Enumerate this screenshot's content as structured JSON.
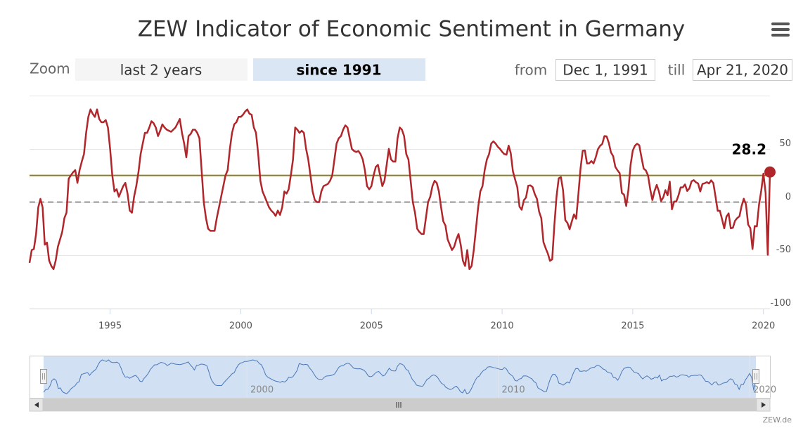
{
  "title": "ZEW Indicator of Economic Sentiment in Germany",
  "zoom": {
    "label": "Zoom",
    "buttons": [
      "last 2 years",
      "since 1991"
    ],
    "selected": 1
  },
  "range": {
    "from_label": "from",
    "from": "Dec 1, 1991",
    "till_label": "till",
    "till": "Apr 21, 2020"
  },
  "credits": "ZEW.de",
  "chart_data": {
    "type": "line",
    "x": [
      "1991-12",
      "1992-01",
      "1992-02",
      "1992-03",
      "1992-04",
      "1992-05",
      "1992-06",
      "1992-07",
      "1992-08",
      "1992-09",
      "1992-10",
      "1992-11",
      "1992-12",
      "1993-01",
      "1993-02",
      "1993-03",
      "1993-04",
      "1993-05",
      "1993-06",
      "1993-07",
      "1993-08",
      "1993-09",
      "1993-10",
      "1993-11",
      "1993-12",
      "1994-01",
      "1994-02",
      "1994-03",
      "1994-04",
      "1994-05",
      "1994-06",
      "1994-07",
      "1994-08",
      "1994-09",
      "1994-10",
      "1994-11",
      "1994-12",
      "1995-01",
      "1995-02",
      "1995-03",
      "1995-04",
      "1995-05",
      "1995-06",
      "1995-07",
      "1995-08",
      "1995-09",
      "1995-10",
      "1995-11",
      "1995-12",
      "1996-01",
      "1996-02",
      "1996-03",
      "1996-04",
      "1996-05",
      "1996-06",
      "1996-07",
      "1996-08",
      "1996-09",
      "1996-10",
      "1996-11",
      "1996-12",
      "1997-01",
      "1997-02",
      "1997-03",
      "1997-04",
      "1997-05",
      "1997-06",
      "1997-07",
      "1997-08",
      "1997-09",
      "1997-10",
      "1997-11",
      "1997-12",
      "1998-01",
      "1998-02",
      "1998-03",
      "1998-04",
      "1998-05",
      "1998-06",
      "1998-07",
      "1998-08",
      "1998-09",
      "1998-10",
      "1998-11",
      "1998-12",
      "1999-01",
      "1999-02",
      "1999-03",
      "1999-04",
      "1999-05",
      "1999-06",
      "1999-07",
      "1999-08",
      "1999-09",
      "1999-10",
      "1999-11",
      "1999-12",
      "2000-01",
      "2000-02",
      "2000-03",
      "2000-04",
      "2000-05",
      "2000-06",
      "2000-07",
      "2000-08",
      "2000-09",
      "2000-10",
      "2000-11",
      "2000-12",
      "2001-01",
      "2001-02",
      "2001-03",
      "2001-04",
      "2001-05",
      "2001-06",
      "2001-07",
      "2001-08",
      "2001-09",
      "2001-10",
      "2001-11",
      "2001-12",
      "2002-01",
      "2002-02",
      "2002-03",
      "2002-04",
      "2002-05",
      "2002-06",
      "2002-07",
      "2002-08",
      "2002-09",
      "2002-10",
      "2002-11",
      "2002-12",
      "2003-01",
      "2003-02",
      "2003-03",
      "2003-04",
      "2003-05",
      "2003-06",
      "2003-07",
      "2003-08",
      "2003-09",
      "2003-10",
      "2003-11",
      "2003-12",
      "2004-01",
      "2004-02",
      "2004-03",
      "2004-04",
      "2004-05",
      "2004-06",
      "2004-07",
      "2004-08",
      "2004-09",
      "2004-10",
      "2004-11",
      "2004-12",
      "2005-01",
      "2005-02",
      "2005-03",
      "2005-04",
      "2005-05",
      "2005-06",
      "2005-07",
      "2005-08",
      "2005-09",
      "2005-10",
      "2005-11",
      "2005-12",
      "2006-01",
      "2006-02",
      "2006-03",
      "2006-04",
      "2006-05",
      "2006-06",
      "2006-07",
      "2006-08",
      "2006-09",
      "2006-10",
      "2006-11",
      "2006-12",
      "2007-01",
      "2007-02",
      "2007-03",
      "2007-04",
      "2007-05",
      "2007-06",
      "2007-07",
      "2007-08",
      "2007-09",
      "2007-10",
      "2007-11",
      "2007-12",
      "2008-01",
      "2008-02",
      "2008-03",
      "2008-04",
      "2008-05",
      "2008-06",
      "2008-07",
      "2008-08",
      "2008-09",
      "2008-10",
      "2008-11",
      "2008-12",
      "2009-01",
      "2009-02",
      "2009-03",
      "2009-04",
      "2009-05",
      "2009-06",
      "2009-07",
      "2009-08",
      "2009-09",
      "2009-10",
      "2009-11",
      "2009-12",
      "2010-01",
      "2010-02",
      "2010-03",
      "2010-04",
      "2010-05",
      "2010-06",
      "2010-07",
      "2010-08",
      "2010-09",
      "2010-10",
      "2010-11",
      "2010-12",
      "2011-01",
      "2011-02",
      "2011-03",
      "2011-04",
      "2011-05",
      "2011-06",
      "2011-07",
      "2011-08",
      "2011-09",
      "2011-10",
      "2011-11",
      "2011-12",
      "2012-01",
      "2012-02",
      "2012-03",
      "2012-04",
      "2012-05",
      "2012-06",
      "2012-07",
      "2012-08",
      "2012-09",
      "2012-10",
      "2012-11",
      "2012-12",
      "2013-01",
      "2013-02",
      "2013-03",
      "2013-04",
      "2013-05",
      "2013-06",
      "2013-07",
      "2013-08",
      "2013-09",
      "2013-10",
      "2013-11",
      "2013-12",
      "2014-01",
      "2014-02",
      "2014-03",
      "2014-04",
      "2014-05",
      "2014-06",
      "2014-07",
      "2014-08",
      "2014-09",
      "2014-10",
      "2014-11",
      "2014-12",
      "2015-01",
      "2015-02",
      "2015-03",
      "2015-04",
      "2015-05",
      "2015-06",
      "2015-07",
      "2015-08",
      "2015-09",
      "2015-10",
      "2015-11",
      "2015-12",
      "2016-01",
      "2016-02",
      "2016-03",
      "2016-04",
      "2016-05",
      "2016-06",
      "2016-07",
      "2016-08",
      "2016-09",
      "2016-10",
      "2016-11",
      "2016-12",
      "2017-01",
      "2017-02",
      "2017-03",
      "2017-04",
      "2017-05",
      "2017-06",
      "2017-07",
      "2017-08",
      "2017-09",
      "2017-10",
      "2017-11",
      "2017-12",
      "2018-01",
      "2018-02",
      "2018-03",
      "2018-04",
      "2018-05",
      "2018-06",
      "2018-07",
      "2018-08",
      "2018-09",
      "2018-10",
      "2018-11",
      "2018-12",
      "2019-01",
      "2019-02",
      "2019-03",
      "2019-04",
      "2019-05",
      "2019-06",
      "2019-07",
      "2019-08",
      "2019-09",
      "2019-10",
      "2019-11",
      "2019-12",
      "2020-01",
      "2020-02",
      "2020-03",
      "2020-04"
    ],
    "series": [
      {
        "color": "#b0262a",
        "values": [
          -57,
          -45,
          -44,
          -30,
          -5,
          3,
          -5,
          -40,
          -38,
          -55,
          -60,
          -63,
          -55,
          -42,
          -35,
          -28,
          -15,
          -10,
          22,
          25,
          28,
          30,
          18,
          30,
          38,
          45,
          65,
          80,
          87,
          83,
          80,
          87,
          78,
          75,
          75,
          77,
          70,
          50,
          25,
          10,
          12,
          5,
          10,
          15,
          18,
          8,
          -8,
          -10,
          5,
          15,
          28,
          45,
          55,
          65,
          65,
          70,
          76,
          74,
          70,
          62,
          67,
          73,
          70,
          68,
          67,
          66,
          68,
          70,
          74,
          78,
          65,
          55,
          42,
          62,
          64,
          68,
          68,
          65,
          60,
          30,
          0,
          -15,
          -25,
          -27,
          -27,
          -27,
          -15,
          -5,
          5,
          15,
          25,
          30,
          50,
          65,
          73,
          75,
          80,
          80,
          82,
          85,
          87,
          83,
          82,
          70,
          65,
          45,
          20,
          10,
          5,
          0,
          -5,
          -8,
          -10,
          -13,
          -8,
          -12,
          -5,
          10,
          8,
          12,
          25,
          40,
          70,
          68,
          65,
          67,
          65,
          50,
          40,
          25,
          10,
          2,
          0,
          0,
          10,
          15,
          16,
          17,
          20,
          25,
          40,
          55,
          60,
          62,
          68,
          72,
          70,
          60,
          50,
          48,
          47,
          48,
          45,
          40,
          30,
          15,
          12,
          15,
          25,
          33,
          35,
          25,
          15,
          20,
          35,
          50,
          40,
          38,
          38,
          60,
          70,
          68,
          62,
          45,
          40,
          20,
          0,
          -10,
          -25,
          -28,
          -30,
          -30,
          -15,
          0,
          5,
          15,
          20,
          18,
          10,
          -5,
          -18,
          -22,
          -35,
          -40,
          -45,
          -42,
          -35,
          -30,
          -40,
          -55,
          -60,
          -45,
          -63,
          -60,
          -45,
          -25,
          -5,
          10,
          15,
          30,
          40,
          45,
          55,
          57,
          55,
          52,
          50,
          47.2,
          45.1,
          44.5,
          53,
          45.8,
          28.7,
          21.2,
          14,
          -4.3,
          -7.2,
          1.8,
          4.3,
          15.4,
          15.7,
          14.1,
          7.6,
          3.1,
          -9,
          -15.1,
          -37.6,
          -43.3,
          -48.3,
          -55.2,
          -53.8,
          -21.6,
          5.4,
          22.3,
          23.4,
          10.8,
          -16.9,
          -19.6,
          -25.5,
          -18.2,
          -11.5,
          -15.7,
          6.9,
          31.5,
          48.2,
          48.5,
          36.3,
          36.4,
          38.5,
          36.3,
          42,
          49.6,
          52.8,
          54.6,
          62,
          61.7,
          55.7,
          46.6,
          43.2,
          33.1,
          29.8,
          27.1,
          8.6,
          6.9,
          -3.6,
          11.5,
          34.9,
          48.4,
          53,
          54.8,
          53.3,
          41.9,
          31.5,
          29.7,
          25,
          12.1,
          1.9,
          10.4,
          16.1,
          10.2,
          1,
          4.3,
          11.2,
          6.4,
          19.2,
          -6.8,
          0.5,
          0.5,
          6.2,
          13.8,
          13.8,
          16.6,
          10.4,
          12.8,
          19.5,
          20.6,
          18.6,
          17.5,
          10,
          17,
          17.6,
          18.7,
          17.4,
          20.4,
          17.8,
          5.1,
          -8.2,
          -8.2,
          -16.1,
          -24.7,
          -13.7,
          -10.6,
          -24.7,
          -24.1,
          -17.5,
          -15,
          -13.4,
          -3.6,
          3.1,
          -2.1,
          -21.1,
          -24.5,
          -44.1,
          -22.5,
          -22.8,
          -2.1,
          10.7,
          26.7,
          8.7,
          -49.5,
          28.2
        ]
      }
    ],
    "xlim": [
      "1991-12",
      "2020-04"
    ],
    "xticks": [
      1995,
      2000,
      2005,
      2010,
      2015,
      2020
    ],
    "ylim": [
      -100,
      100
    ],
    "yticks": [
      -100,
      -50,
      0,
      50
    ],
    "grid": true,
    "plot_lines": [
      {
        "value": 25,
        "color": "#8a7d2e"
      },
      {
        "value": 0,
        "color": "#9a9a9a",
        "dash": true
      }
    ],
    "label_last": true,
    "navigator": {
      "color": "#4a78b8",
      "xticks": [
        2000,
        2010,
        2020
      ]
    }
  }
}
